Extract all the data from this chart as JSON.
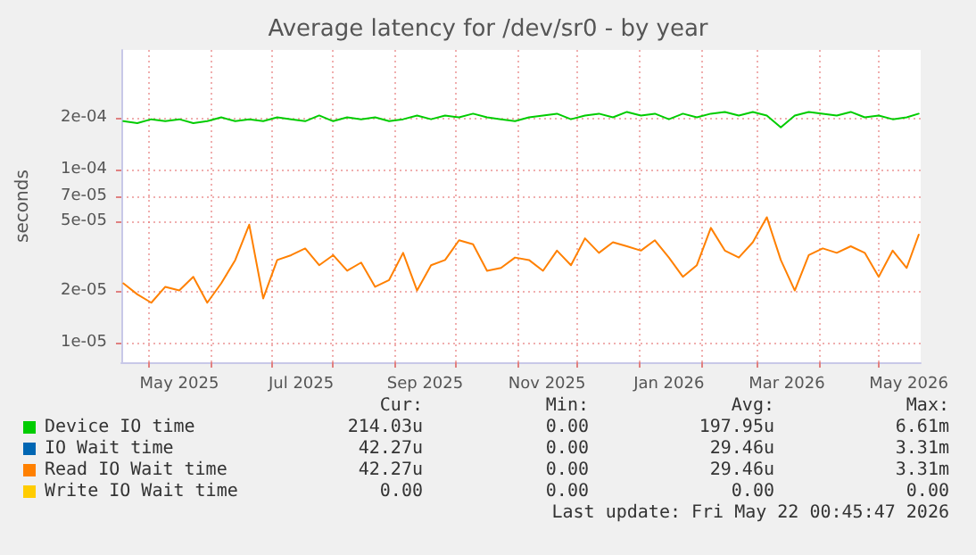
{
  "chart_data": {
    "type": "line",
    "title": "Average latency for /dev/sr0 - by year",
    "ylabel": "seconds",
    "x": [
      "2025-04-18",
      "2025-04-25",
      "2025-05-02",
      "2025-05-09",
      "2025-05-16",
      "2025-05-23",
      "2025-05-30",
      "2025-06-06",
      "2025-06-13",
      "2025-06-20",
      "2025-06-27",
      "2025-07-04",
      "2025-07-11",
      "2025-07-18",
      "2025-07-25",
      "2025-08-01",
      "2025-08-08",
      "2025-08-15",
      "2025-08-22",
      "2025-08-29",
      "2025-09-05",
      "2025-09-12",
      "2025-09-19",
      "2025-09-26",
      "2025-10-03",
      "2025-10-10",
      "2025-10-17",
      "2025-10-24",
      "2025-10-31",
      "2025-11-07",
      "2025-11-14",
      "2025-11-21",
      "2025-11-28",
      "2025-12-05",
      "2025-12-12",
      "2025-12-19",
      "2025-12-26",
      "2026-01-02",
      "2026-01-09",
      "2026-01-16",
      "2026-01-23",
      "2026-01-30",
      "2026-02-06",
      "2026-02-13",
      "2026-02-20",
      "2026-02-27",
      "2026-03-06",
      "2026-03-13",
      "2026-03-20",
      "2026-03-27",
      "2026-04-03",
      "2026-04-10",
      "2026-04-17",
      "2026-04-24",
      "2026-05-01",
      "2026-05-08",
      "2026-05-15",
      "2026-05-21"
    ],
    "series": [
      {
        "name": "Device IO time",
        "color": "#00cc00",
        "values": [
          0.00019,
          0.000185,
          0.000195,
          0.00019,
          0.000195,
          0.000185,
          0.00019,
          0.0002,
          0.00019,
          0.000195,
          0.00019,
          0.0002,
          0.000195,
          0.00019,
          0.000205,
          0.00019,
          0.0002,
          0.000195,
          0.0002,
          0.00019,
          0.000195,
          0.000205,
          0.000195,
          0.000205,
          0.0002,
          0.00021,
          0.0002,
          0.000195,
          0.00019,
          0.0002,
          0.000205,
          0.00021,
          0.000195,
          0.000205,
          0.00021,
          0.0002,
          0.000215,
          0.000205,
          0.00021,
          0.000195,
          0.00021,
          0.0002,
          0.00021,
          0.000215,
          0.000205,
          0.000215,
          0.000205,
          0.000175,
          0.000205,
          0.000215,
          0.00021,
          0.000205,
          0.000215,
          0.0002,
          0.000205,
          0.000195,
          0.0002,
          0.00021
        ]
      },
      {
        "name": "IO Wait time",
        "color": "#0066b3",
        "values": [
          null,
          null,
          null,
          null,
          null,
          null,
          null,
          null,
          null,
          null,
          null,
          null,
          null,
          null,
          null,
          null,
          null,
          null,
          null,
          null,
          null,
          null,
          null,
          null,
          null,
          null,
          null,
          null,
          null,
          null,
          null,
          null,
          null,
          null,
          null,
          null,
          null,
          null,
          null,
          null,
          null,
          null,
          null,
          null,
          null,
          null,
          null,
          null,
          null,
          null,
          null,
          null,
          null,
          null,
          null,
          null,
          null,
          null
        ]
      },
      {
        "name": "Read IO Wait time",
        "color": "#ff8000",
        "values": [
          2.2e-05,
          1.9e-05,
          1.7e-05,
          2.1e-05,
          2e-05,
          2.4e-05,
          1.7e-05,
          2.2e-05,
          3e-05,
          4.8e-05,
          1.8e-05,
          3e-05,
          3.2e-05,
          3.5e-05,
          2.8e-05,
          3.2e-05,
          2.6e-05,
          2.9e-05,
          2.1e-05,
          2.3e-05,
          3.3e-05,
          2e-05,
          2.8e-05,
          3e-05,
          3.9e-05,
          3.7e-05,
          2.6e-05,
          2.7e-05,
          3.1e-05,
          3e-05,
          2.6e-05,
          3.4e-05,
          2.8e-05,
          4e-05,
          3.3e-05,
          3.8e-05,
          3.6e-05,
          3.4e-05,
          3.9e-05,
          3.1e-05,
          2.4e-05,
          2.8e-05,
          4.6e-05,
          3.4e-05,
          3.1e-05,
          3.8e-05,
          5.3e-05,
          3e-05,
          2e-05,
          3.2e-05,
          3.5e-05,
          3.3e-05,
          3.6e-05,
          3.3e-05,
          2.4e-05,
          3.4e-05,
          2.7e-05,
          4.2e-05
        ]
      },
      {
        "name": "Write IO Wait time",
        "color": "#ffcc00",
        "values": [
          null,
          null,
          null,
          null,
          null,
          null,
          null,
          null,
          null,
          null,
          null,
          null,
          null,
          null,
          null,
          null,
          null,
          null,
          null,
          null,
          null,
          null,
          null,
          null,
          null,
          null,
          null,
          null,
          null,
          null,
          null,
          null,
          null,
          null,
          null,
          null,
          null,
          null,
          null,
          null,
          null,
          null,
          null,
          null,
          null,
          null,
          null,
          null,
          null,
          null,
          null,
          null,
          null,
          null,
          null,
          null,
          null,
          null
        ]
      }
    ],
    "xlim": [
      "2025-04-17",
      "2026-05-22"
    ],
    "xticks": [
      {
        "value": "2025-05-01",
        "label": null
      },
      {
        "value": "2025-05-16",
        "label": "May 2025"
      },
      {
        "value": "2025-06-01",
        "label": null
      },
      {
        "value": "2025-07-01",
        "label": null
      },
      {
        "value": "2025-07-16",
        "label": "Jul 2025"
      },
      {
        "value": "2025-08-01",
        "label": null
      },
      {
        "value": "2025-09-01",
        "label": null
      },
      {
        "value": "2025-09-16",
        "label": "Sep 2025"
      },
      {
        "value": "2025-10-01",
        "label": null
      },
      {
        "value": "2025-11-01",
        "label": null
      },
      {
        "value": "2025-11-16",
        "label": "Nov 2025"
      },
      {
        "value": "2025-12-01",
        "label": null
      },
      {
        "value": "2026-01-01",
        "label": null
      },
      {
        "value": "2026-01-16",
        "label": "Jan 2026"
      },
      {
        "value": "2026-02-01",
        "label": null
      },
      {
        "value": "2026-03-01",
        "label": null
      },
      {
        "value": "2026-03-16",
        "label": "Mar 2026"
      },
      {
        "value": "2026-04-01",
        "label": null
      },
      {
        "value": "2026-05-01",
        "label": null
      },
      {
        "value": "2026-05-16",
        "label": "May 2026"
      }
    ],
    "ylim": [
      7.7e-06,
      0.00049
    ],
    "yticks": [
      {
        "value": 1e-05,
        "label": "1e-05"
      },
      {
        "value": 2e-05,
        "label": "2e-05"
      },
      {
        "value": 5e-05,
        "label": "5e-05"
      },
      {
        "value": 7e-05,
        "label": "7e-05"
      },
      {
        "value": 0.0001,
        "label": "1e-04"
      },
      {
        "value": 0.0002,
        "label": "2e-04"
      }
    ],
    "log": "y",
    "grid": true,
    "legend": "bottom",
    "marker": "none",
    "line_style": "solid",
    "annotations": [
      "Cur:",
      "Min:",
      "Avg:",
      "Max:",
      "214.03u",
      "0.00",
      "197.95u",
      "6.61m",
      "42.27u",
      "0.00",
      "29.46u",
      "3.31m",
      "42.27u",
      "0.00",
      "29.46u",
      "3.31m",
      "0.00",
      "0.00",
      "0.00",
      "0.00",
      "Last update: Fri May 22 00:45:47 2026"
    ]
  }
}
